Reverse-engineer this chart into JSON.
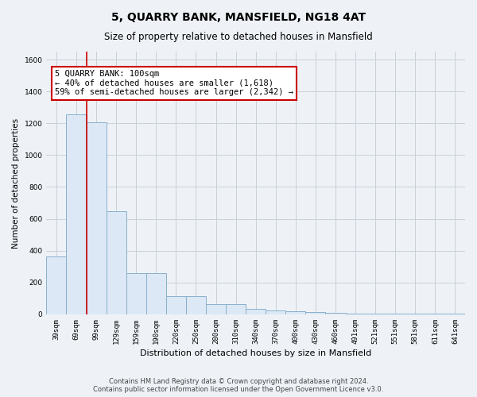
{
  "title": "5, QUARRY BANK, MANSFIELD, NG18 4AT",
  "subtitle": "Size of property relative to detached houses in Mansfield",
  "xlabel": "Distribution of detached houses by size in Mansfield",
  "ylabel": "Number of detached properties",
  "footnote": "Contains HM Land Registry data © Crown copyright and database right 2024.\nContains public sector information licensed under the Open Government Licence v3.0.",
  "categories": [
    "39sqm",
    "69sqm",
    "99sqm",
    "129sqm",
    "159sqm",
    "190sqm",
    "220sqm",
    "250sqm",
    "280sqm",
    "310sqm",
    "340sqm",
    "370sqm",
    "400sqm",
    "430sqm",
    "460sqm",
    "491sqm",
    "521sqm",
    "551sqm",
    "581sqm",
    "611sqm",
    "641sqm"
  ],
  "values": [
    365,
    1255,
    1205,
    650,
    260,
    260,
    115,
    115,
    65,
    65,
    35,
    25,
    20,
    15,
    10,
    5,
    5,
    5,
    5,
    5,
    5
  ],
  "bar_color": "#dce8f5",
  "bar_edge_color": "#8ab0cc",
  "grid_color": "#c8d0d8",
  "background_color": "#eef2f7",
  "vline_color": "#cc0000",
  "annotation_text": "5 QUARRY BANK: 100sqm\n← 40% of detached houses are smaller (1,618)\n59% of semi-detached houses are larger (2,342) →",
  "annotation_box_color": "#ffffff",
  "annotation_box_edge": "#cc0000",
  "ylim": [
    0,
    1650
  ],
  "yticks": [
    0,
    200,
    400,
    600,
    800,
    1000,
    1200,
    1400,
    1600
  ],
  "title_fontsize": 10,
  "subtitle_fontsize": 8.5,
  "xlabel_fontsize": 8,
  "ylabel_fontsize": 7.5,
  "tick_fontsize": 6.5,
  "annot_fontsize": 7.5,
  "footnote_fontsize": 6
}
